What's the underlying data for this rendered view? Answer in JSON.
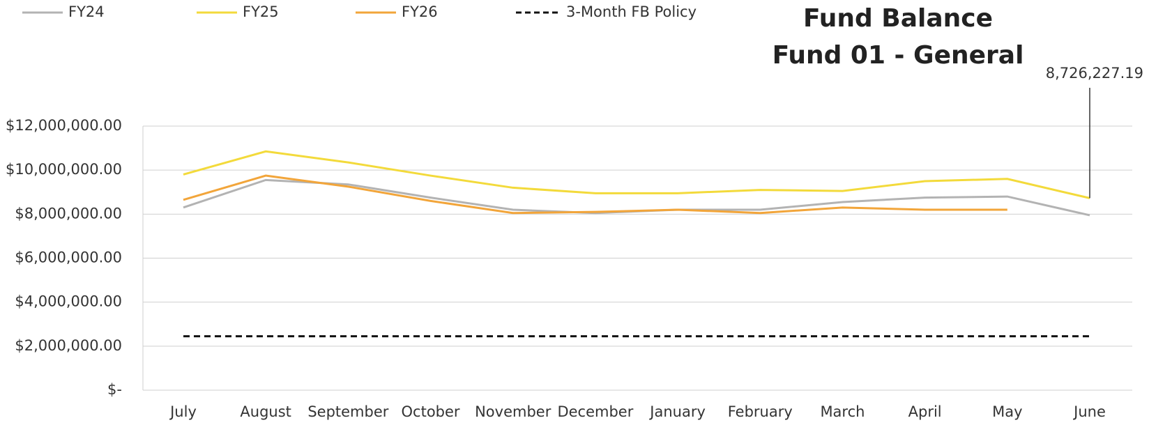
{
  "chart_data": {
    "type": "line",
    "title": "Fund Balance",
    "subtitle": "Fund 01 - General",
    "categories": [
      "July",
      "August",
      "September",
      "October",
      "November",
      "December",
      "January",
      "February",
      "March",
      "April",
      "May",
      "June"
    ],
    "series": [
      {
        "name": "FY24",
        "color": "#b3b3b3",
        "values": [
          8300000,
          9550000,
          9350000,
          8750000,
          8200000,
          8050000,
          8200000,
          8200000,
          8550000,
          8750000,
          8800000,
          7950000
        ]
      },
      {
        "name": "FY25",
        "color": "#f3da3b",
        "values": [
          9800000,
          10850000,
          10350000,
          9750000,
          9200000,
          8950000,
          8950000,
          9100000,
          9050000,
          9500000,
          9600000,
          8726227.19
        ],
        "value_labels": [
          null,
          null,
          null,
          null,
          null,
          null,
          null,
          null,
          null,
          null,
          null,
          "8,726,227.19"
        ]
      },
      {
        "name": "FY26",
        "color": "#f2a53a",
        "values": [
          8650000,
          9750000,
          9250000,
          8600000,
          8050000,
          8100000,
          8200000,
          8050000,
          8300000,
          8200000,
          8200000,
          null
        ]
      },
      {
        "name": "3-Month FB Policy",
        "color": "#111111",
        "dashed": true,
        "values": [
          2450000,
          2450000,
          2450000,
          2450000,
          2450000,
          2450000,
          2450000,
          2450000,
          2450000,
          2450000,
          2450000,
          2450000
        ]
      }
    ],
    "ylim": [
      0,
      12000000
    ],
    "yticks": [
      {
        "value": 0,
        "label": "$-"
      },
      {
        "value": 2000000,
        "label": "$2,000,000.00"
      },
      {
        "value": 4000000,
        "label": "$4,000,000.00"
      },
      {
        "value": 6000000,
        "label": "$6,000,000.00"
      },
      {
        "value": 8000000,
        "label": "$8,000,000.00"
      },
      {
        "value": 10000000,
        "label": "$10,000,000.00"
      },
      {
        "value": 12000000,
        "label": "$12,000,000.00"
      }
    ],
    "grid": true,
    "legend": "top"
  }
}
